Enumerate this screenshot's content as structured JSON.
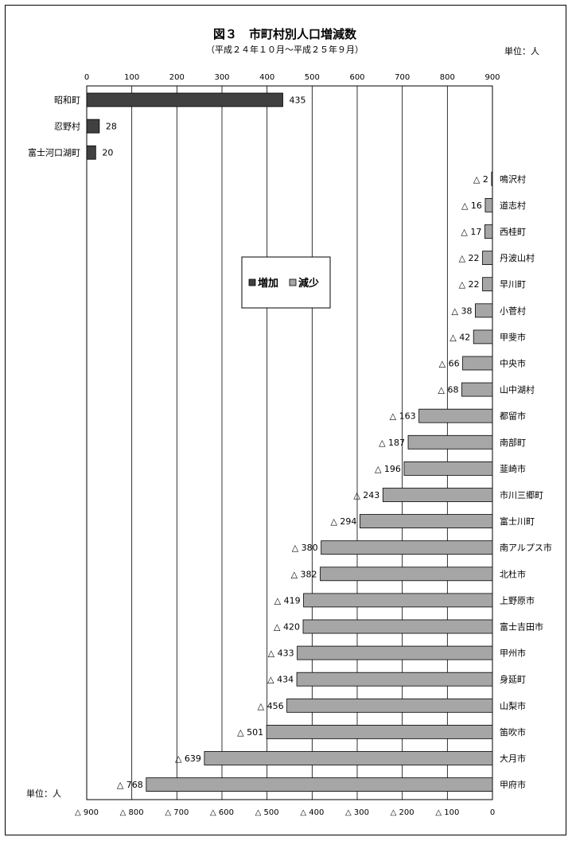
{
  "chart_data": {
    "type": "bar",
    "orientation": "horizontal",
    "title": "図３　市町村別人口増減数",
    "subtitle": "（平成２４年１０月～平成２５年９月）",
    "unit_top": "単位：人",
    "unit_bottom": "単位：人",
    "top_axis": {
      "range": [
        0,
        900
      ],
      "ticks": [
        "0",
        "100",
        "200",
        "300",
        "400",
        "500",
        "600",
        "700",
        "800",
        "900"
      ]
    },
    "bottom_axis": {
      "range": [
        900,
        0
      ],
      "ticks": [
        "△ 900",
        "△ 800",
        "△ 700",
        "△ 600",
        "△ 500",
        "△ 400",
        "△ 300",
        "△ 200",
        "△ 100",
        "0"
      ]
    },
    "legend": {
      "increase": "増加",
      "decrease": "減少",
      "placement": "center-left"
    },
    "colors": {
      "increase": "#404040",
      "decrease": "#a6a6a6"
    },
    "series": [
      {
        "name": "増加",
        "categories": [
          "昭和町",
          "忍野村",
          "富士河口湖町"
        ],
        "values": [
          435,
          28,
          20
        ],
        "labels": [
          "435",
          "28",
          "20"
        ]
      },
      {
        "name": "減少",
        "categories": [
          "鳴沢村",
          "道志村",
          "西桂町",
          "丹波山村",
          "早川町",
          "小菅村",
          "甲斐市",
          "中央市",
          "山中湖村",
          "都留市",
          "南部町",
          "韮崎市",
          "市川三郷町",
          "富士川町",
          "南アルプス市",
          "北杜市",
          "上野原市",
          "富士吉田市",
          "甲州市",
          "身延町",
          "山梨市",
          "笛吹市",
          "大月市",
          "甲府市"
        ],
        "values": [
          2,
          16,
          17,
          22,
          22,
          38,
          42,
          66,
          68,
          163,
          187,
          196,
          243,
          294,
          380,
          382,
          419,
          420,
          433,
          434,
          456,
          501,
          639,
          768
        ],
        "labels": [
          "△ 2",
          "△ 16",
          "△ 17",
          "△ 22",
          "△ 22",
          "△ 38",
          "△ 42",
          "△ 66",
          "△ 68",
          "△ 163",
          "△ 187",
          "△ 196",
          "△ 243",
          "△ 294",
          "△ 380",
          "△ 382",
          "△ 419",
          "△ 420",
          "△ 433",
          "△ 434",
          "△ 456",
          "△ 501",
          "△ 639",
          "△ 768"
        ]
      }
    ]
  }
}
